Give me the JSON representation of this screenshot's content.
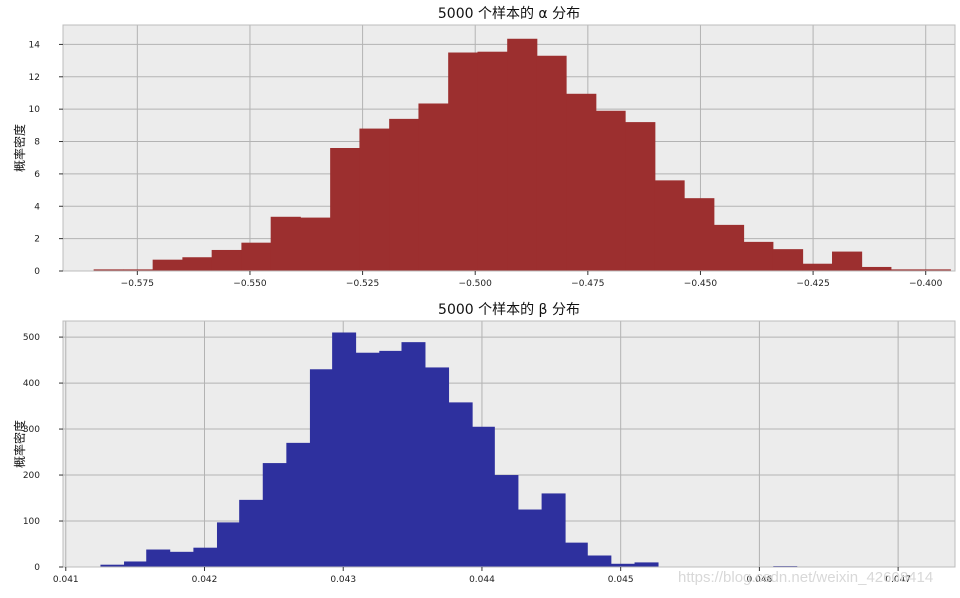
{
  "chart_data": [
    {
      "type": "bar",
      "title": "5000 个样本的 α 分布",
      "xlabel": "",
      "ylabel": "概率密度",
      "color": "#9c2f2f",
      "grid": true,
      "xlim": [
        -0.5915,
        -0.3935
      ],
      "ylim": [
        0,
        15.2
      ],
      "x_ticks": [
        -0.575,
        -0.55,
        -0.525,
        -0.5,
        -0.475,
        -0.45,
        -0.425,
        -0.4
      ],
      "x_tick_labels": [
        "−0.575",
        "−0.550",
        "−0.525",
        "−0.500",
        "−0.475",
        "−0.450",
        "−0.425",
        "−0.400"
      ],
      "y_ticks": [
        0,
        2,
        4,
        6,
        8,
        10,
        12,
        14
      ],
      "y_tick_labels": [
        "0",
        "2",
        "4",
        "6",
        "8",
        "10",
        "12",
        "14"
      ],
      "bin_edges": [
        -0.5847,
        -0.5781,
        -0.5716,
        -0.565,
        -0.5585,
        -0.5519,
        -0.5454,
        -0.5388,
        -0.5322,
        -0.5257,
        -0.5191,
        -0.5126,
        -0.506,
        -0.4995,
        -0.4929,
        -0.4863,
        -0.4798,
        -0.4732,
        -0.4667,
        -0.4601,
        -0.4536,
        -0.447,
        -0.4404,
        -0.4339,
        -0.4273,
        -0.4208,
        -0.4142,
        -0.4077,
        -0.4011,
        -0.3945
      ],
      "values": [
        0.1,
        0.1,
        0.7,
        0.85,
        1.3,
        1.75,
        3.35,
        3.3,
        7.6,
        8.8,
        9.4,
        10.35,
        13.5,
        13.55,
        14.35,
        13.3,
        10.95,
        9.9,
        9.2,
        5.6,
        4.5,
        2.85,
        1.8,
        1.35,
        0.45,
        1.2,
        0.25,
        0.1,
        0.1
      ]
    },
    {
      "type": "bar",
      "title": "5000 个样本的 β 分布",
      "xlabel": "",
      "ylabel": "概率密度",
      "color": "#2e309e",
      "grid": true,
      "xlim": [
        0.04098,
        0.04741
      ],
      "ylim": [
        0,
        535
      ],
      "x_ticks": [
        0.041,
        0.042,
        0.043,
        0.044,
        0.045,
        0.046,
        0.047
      ],
      "x_tick_labels": [
        "0.041",
        "0.042",
        "0.043",
        "0.044",
        "0.045",
        "0.046",
        "0.047"
      ],
      "y_ticks": [
        0,
        100,
        200,
        300,
        400,
        500
      ],
      "y_tick_labels": [
        "0",
        "100",
        "200",
        "300",
        "400",
        "500"
      ],
      "bin_edges": [
        0.04125,
        0.04142,
        0.04158,
        0.04175,
        0.04192,
        0.04209,
        0.04225,
        0.04242,
        0.04259,
        0.04276,
        0.04292,
        0.04309,
        0.04326,
        0.04342,
        0.04359,
        0.04376,
        0.04393,
        0.04409,
        0.04426,
        0.04443,
        0.0446,
        0.04476,
        0.04493,
        0.0451,
        0.04527,
        0.04543,
        0.0456,
        0.04577,
        0.04593,
        0.0461,
        0.04627,
        0.04644,
        0.0466,
        0.04677,
        0.04694,
        0.04711
      ],
      "values": [
        5,
        12,
        38,
        33,
        42,
        97,
        146,
        226,
        270,
        430,
        510,
        466,
        470,
        489,
        434,
        358,
        305,
        200,
        125,
        160,
        53,
        25,
        7,
        10,
        0,
        0,
        0,
        0,
        0,
        2,
        0,
        0,
        0,
        0,
        0
      ]
    }
  ],
  "watermark": "https://blog.csdn.net/weixin_42608414"
}
